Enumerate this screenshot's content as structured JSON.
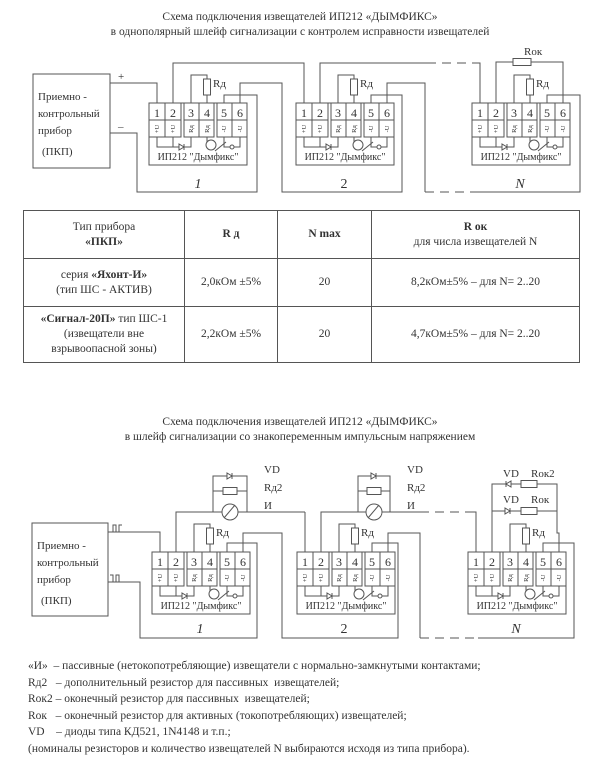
{
  "diagram1": {
    "title_line1": "Схема подключения извещателей ИП212 «ДЫМФИКС»",
    "title_line2": "в однополярный шлейф сигнализации с контролем исправности извещателей",
    "panel_lines": [
      "Приемно -",
      "контрольный",
      "прибор",
      "(ПКП)"
    ],
    "plus": "+",
    "minus": "–",
    "r_d": "Rд",
    "r_ok": "Rок",
    "indices": [
      "1",
      "2",
      "N"
    ]
  },
  "detector": {
    "terminal_numbers": [
      "1",
      "2",
      "3",
      "4",
      "5",
      "6"
    ],
    "terminal_labels": [
      "+U",
      "+U",
      "Rд",
      "Rд",
      "-U",
      "-U"
    ],
    "model": "ИП212 \"Дымфикс\""
  },
  "table": {
    "headers": [
      {
        "line1": "Тип прибора",
        "line2": "«ПКП»"
      },
      {
        "line1": "R д"
      },
      {
        "line1": "N max"
      },
      {
        "line1": "R ок",
        "line2": "для числа извещателей N"
      }
    ],
    "rows": [
      {
        "type_prefix": "серия ",
        "type_bold": "«Яхонт-И»",
        "type_suffix": "",
        "type_note1": "(тип ШС - АКТИВ)",
        "type_note2": "",
        "rd": "2,0кОм ±5%",
        "nmax": "20",
        "rok": "8,2кОм±5% – для N= 2..20"
      },
      {
        "type_prefix": "",
        "type_bold": "«Сигнал-20П»",
        "type_suffix": " тип ШС-1",
        "type_note1": "(извещатели  вне",
        "type_note2": "взрывоопасной зоны)",
        "rd": "2,2кОм ±5%",
        "nmax": "20",
        "rok": "4,7кОм±5% – для N= 2..20"
      }
    ]
  },
  "diagram2": {
    "title_line1": "Схема подключения извещателей ИП212 «ДЫМФИКС»",
    "title_line2": "в шлейф сигнализации со знакопеременным импульсным напряжением",
    "panel_lines": [
      "Приемно -",
      "контрольный",
      "прибор",
      "(ПКП)"
    ],
    "vd": "VD",
    "r_d2": "Rд2",
    "passive": "И",
    "r_d": "Rд",
    "r_ok": "Rок",
    "r_ok2": "Rок2",
    "indices": [
      "1",
      "2",
      "N"
    ]
  },
  "notes": [
    "«И»  – пассивные (нетокопотребляющие) извещатели с нормально-замкнутыми контактами;",
    "Rд2   – дополнительный резистор для пассивных  извещателей;",
    "Rок2 – оконечный резистор для пассивных  извещателей;",
    "Rок   – оконечный резистор для активных (токопотребляющих) извещателей;",
    "VD    – диоды типа КД521, 1N4148 и т.п.;",
    "(номиналы резисторов и количество извещателей N выбираются исходя из типа прибора)."
  ]
}
